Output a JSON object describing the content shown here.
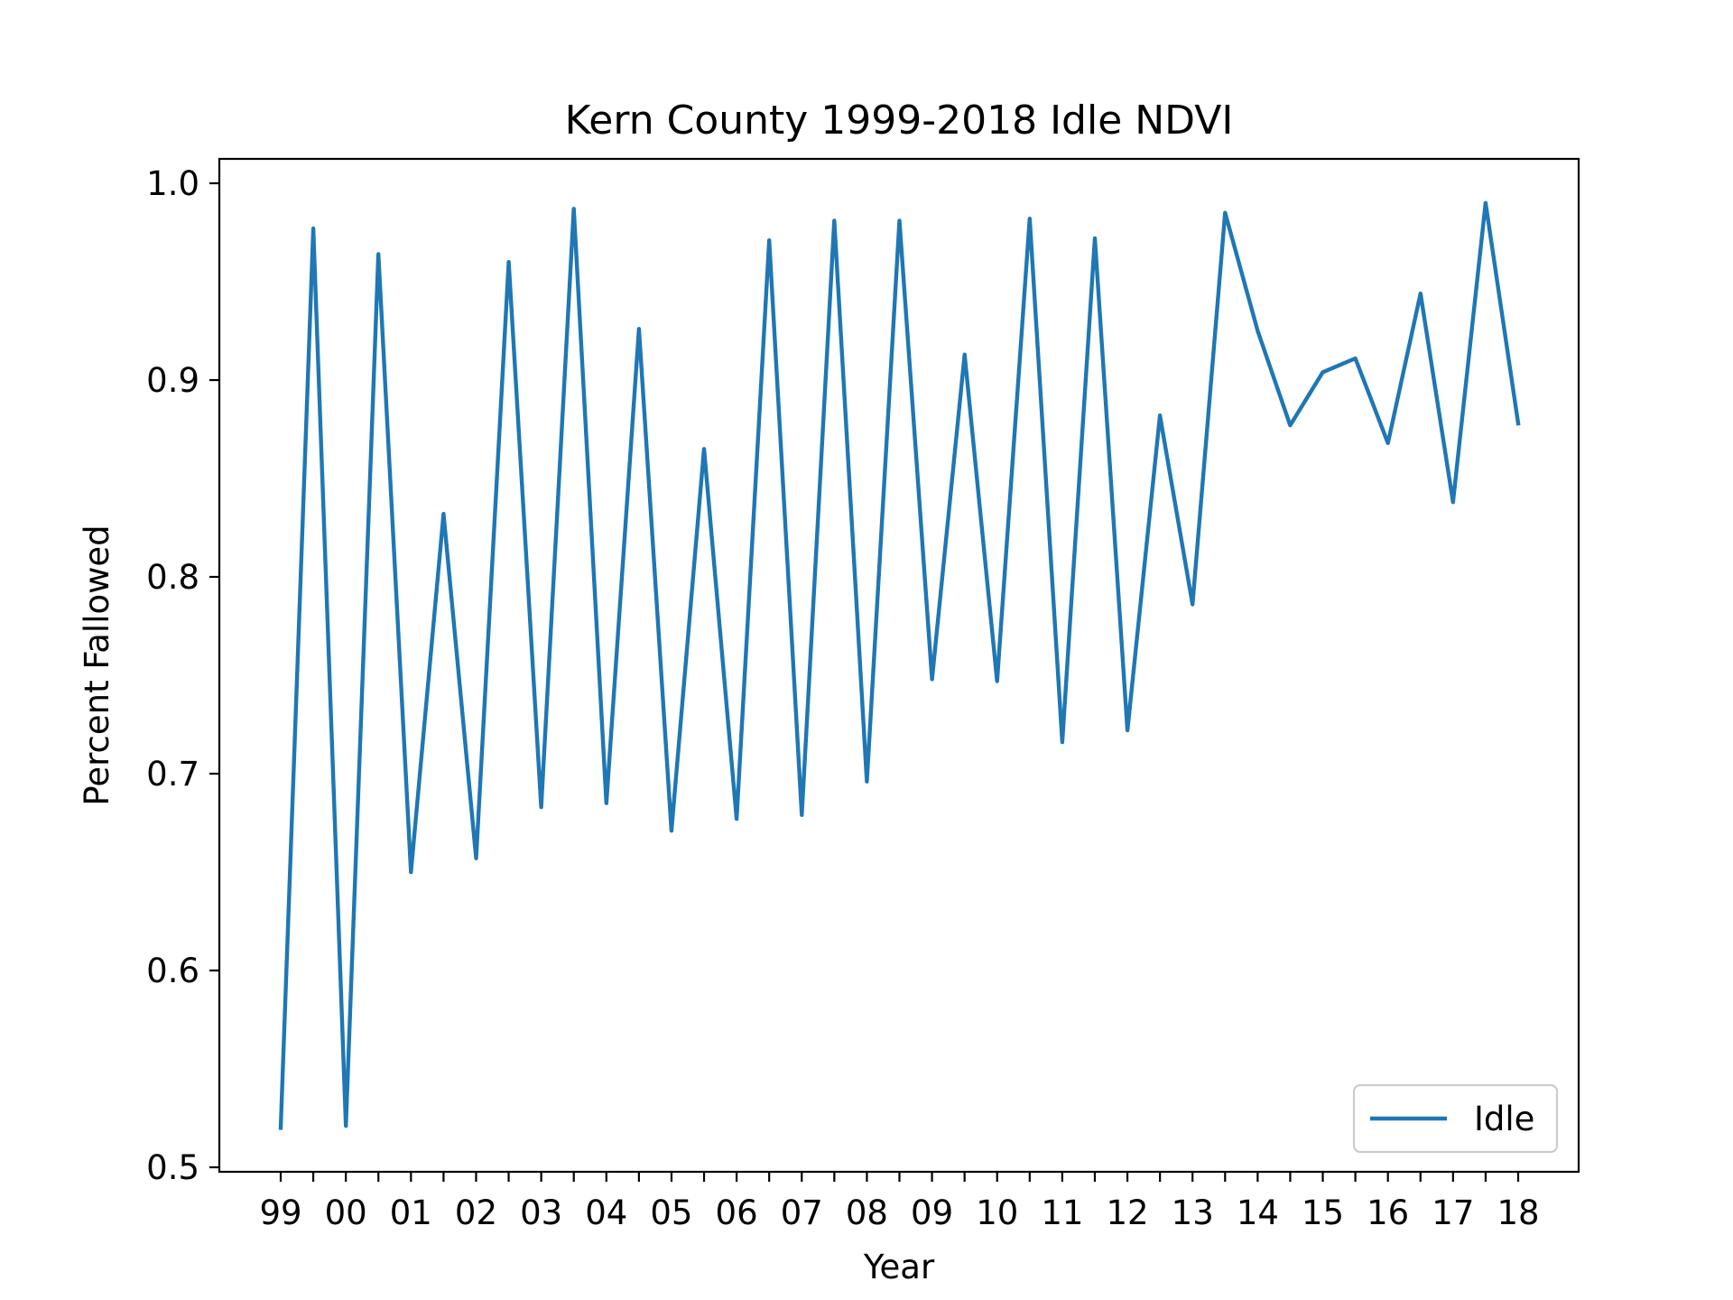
{
  "chart_data": {
    "type": "line",
    "title": "Kern County 1999-2018 Idle NDVI",
    "xlabel": "Year",
    "ylabel": "Percent Fallowed",
    "x_tick_labels": [
      "99",
      "00",
      "01",
      "02",
      "03",
      "04",
      "05",
      "06",
      "07",
      "08",
      "09",
      "10",
      "11",
      "12",
      "13",
      "14",
      "15",
      "16",
      "17",
      "18"
    ],
    "y_ticks": [
      "0.5",
      "0.6",
      "0.7",
      "0.8",
      "0.9",
      "1.0"
    ],
    "ylim": [
      0.5,
      1.0
    ],
    "grid": false,
    "legend_position": "lower-right",
    "series": [
      {
        "name": "Idle",
        "color": "#1f77b4",
        "x": [
          1999,
          1999.5,
          2000,
          2000.5,
          2001,
          2001.5,
          2002,
          2002.5,
          2003,
          2003.5,
          2004,
          2004.5,
          2005,
          2005.5,
          2006,
          2006.5,
          2007,
          2007.5,
          2008,
          2008.5,
          2009,
          2009.5,
          2010,
          2010.5,
          2011,
          2011.5,
          2012,
          2012.5,
          2013,
          2013.5,
          2014,
          2014.5,
          2015,
          2015.5,
          2016,
          2016.5,
          2017,
          2017.5,
          2018
        ],
        "values": [
          0.52,
          0.977,
          0.521,
          0.964,
          0.65,
          0.832,
          0.657,
          0.96,
          0.683,
          0.987,
          0.685,
          0.926,
          0.671,
          0.865,
          0.677,
          0.971,
          0.679,
          0.981,
          0.696,
          0.981,
          0.748,
          0.913,
          0.747,
          0.982,
          0.716,
          0.972,
          0.722,
          0.882,
          0.786,
          0.985,
          0.925,
          0.877,
          0.904,
          0.911,
          0.868,
          0.944,
          0.838,
          0.99,
          0.878
        ]
      }
    ]
  }
}
